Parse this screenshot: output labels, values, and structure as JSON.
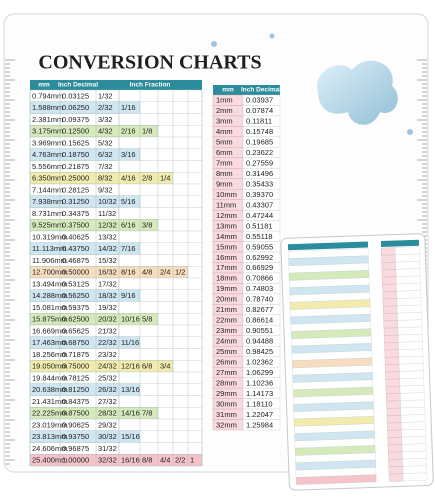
{
  "title": "CONVERSION CHARTS",
  "fraction_table": {
    "headers": [
      "mm",
      "Inch Decimal",
      "Inch Fraction"
    ],
    "rows": [
      [
        "0.794mm",
        "0.03125",
        "1/32"
      ],
      [
        "1.588mm",
        "0.06250",
        "2/32",
        "1/16"
      ],
      [
        "2.381mm",
        "0.09375",
        "3/32"
      ],
      [
        "3.175mm",
        "0.12500",
        "4/32",
        "2/16",
        "1/8"
      ],
      [
        "3.969mm",
        "0.15625",
        "5/32"
      ],
      [
        "4.763mm",
        "0.18750",
        "6/32",
        "3/16"
      ],
      [
        "5.556mm",
        "0.21875",
        "7/32"
      ],
      [
        "6.350mm",
        "0.25000",
        "8/32",
        "4/16",
        "2/8",
        "1/4"
      ],
      [
        "7.144mm",
        "0.28125",
        "9/32"
      ],
      [
        "7.938mm",
        "0.31250",
        "10/32",
        "5/16"
      ],
      [
        "8.731mm",
        "0.34375",
        "11/32"
      ],
      [
        "9.525mm",
        "0.37500",
        "12/32",
        "6/16",
        "3/8"
      ],
      [
        "10.319mm",
        "0.40625",
        "13/32"
      ],
      [
        "11.113mm",
        "0.43750",
        "14/32",
        "7/16"
      ],
      [
        "11.906mm",
        "0.46875",
        "15/32"
      ],
      [
        "12.700mm",
        "0.50000",
        "16/32",
        "8/16",
        "4/8",
        "2/4",
        "1/2"
      ],
      [
        "13.494mm",
        "0.53125",
        "17/32"
      ],
      [
        "14.288mm",
        "0.56250",
        "18/32",
        "9/16"
      ],
      [
        "15.081mm",
        "0.59375",
        "19/32"
      ],
      [
        "15.875mm",
        "0.62500",
        "20/32",
        "10/16",
        "5/8"
      ],
      [
        "16.669mm",
        "0.65625",
        "21/32"
      ],
      [
        "17.463mm",
        "0.68750",
        "22/32",
        "11/16"
      ],
      [
        "18.256mm",
        "0.71875",
        "23/32"
      ],
      [
        "19.050mm",
        "0.75000",
        "24/32",
        "12/16",
        "6/8",
        "3/4"
      ],
      [
        "19.844mm",
        "0.78125",
        "25/32"
      ],
      [
        "20.638mm",
        "0.81250",
        "26/32",
        "13/16"
      ],
      [
        "21.431mm",
        "0.84375",
        "27/32"
      ],
      [
        "22.225mm",
        "0.87500",
        "28/32",
        "14/16",
        "7/8"
      ],
      [
        "23.019mm",
        "0.90625",
        "29/32"
      ],
      [
        "23.813mm",
        "0.93750",
        "30/32",
        "15/16"
      ],
      [
        "24.606mm",
        "0.96875",
        "31/32"
      ],
      [
        "25.400mm",
        "1.00000",
        "32/32",
        "16/16",
        "8/8",
        "4/4",
        "2/2",
        "1"
      ]
    ]
  },
  "mm_table": {
    "headers": [
      "mm",
      "Inch Decimal"
    ],
    "rows": [
      [
        "1mm",
        "0.03937"
      ],
      [
        "2mm",
        "0.07874"
      ],
      [
        "3mm",
        "0.11811"
      ],
      [
        "4mm",
        "0.15748"
      ],
      [
        "5mm",
        "0.19685"
      ],
      [
        "6mm",
        "0.23622"
      ],
      [
        "7mm",
        "0.27559"
      ],
      [
        "8mm",
        "0.31496"
      ],
      [
        "9mm",
        "0.35433"
      ],
      [
        "10mm",
        "0.39370"
      ],
      [
        "11mm",
        "0.43307"
      ],
      [
        "12mm",
        "0.47244"
      ],
      [
        "13mm",
        "0.51181"
      ],
      [
        "14mm",
        "0.55118"
      ],
      [
        "15mm",
        "0.59055"
      ],
      [
        "16mm",
        "0.62992"
      ],
      [
        "17mm",
        "0.66929"
      ],
      [
        "18mm",
        "0.70866"
      ],
      [
        "19mm",
        "0.74803"
      ],
      [
        "20mm",
        "0.78740"
      ],
      [
        "21mm",
        "0.82677"
      ],
      [
        "22mm",
        "0.86614"
      ],
      [
        "23mm",
        "0.90551"
      ],
      [
        "24mm",
        "0.94488"
      ],
      [
        "25mm",
        "0.98425"
      ],
      [
        "26mm",
        "1.02362"
      ],
      [
        "27mm",
        "1.06299"
      ],
      [
        "28mm",
        "1.10236"
      ],
      [
        "29mm",
        "1.14173"
      ],
      [
        "30mm",
        "1.18110"
      ],
      [
        "31mm",
        "1.22047"
      ],
      [
        "32mm",
        "1.25984"
      ]
    ]
  }
}
